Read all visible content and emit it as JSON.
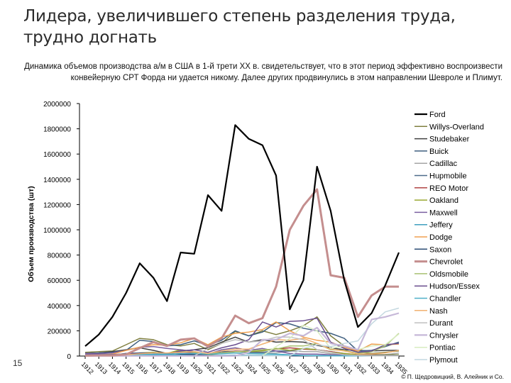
{
  "slide": {
    "title": "Лидера, увеличившего степень разделения труда, трудно догнать",
    "subtitle": "Динамика объемов производства а/м в США в 1-й трети XX в. свидетельствует, что в этот период эффективно воспроизвести конвейерную СРТ Форда ни удается никому. Далее других продвинулись в этом направлении Шевроле и Плимут.",
    "slide_number": "15",
    "copyright": "© П. Щедровицкий, В. Алейник и Со."
  },
  "chart_data": {
    "type": "line",
    "title": "",
    "xlabel": "",
    "ylabel": "Объем производства (шт)",
    "ylim": [
      0,
      2000000
    ],
    "yticks": [
      0,
      200000,
      400000,
      600000,
      800000,
      1000000,
      1200000,
      1400000,
      1600000,
      1800000,
      2000000
    ],
    "ytick_labels": [
      "0",
      "200000",
      "400000",
      "600000",
      "800000",
      "1000000",
      "1200000",
      "1400000",
      "1600000",
      "1800000",
      "2000000"
    ],
    "categories": [
      "1912",
      "1913",
      "1914",
      "1915",
      "1916",
      "1917",
      "1918",
      "1919",
      "1920",
      "1921",
      "1922",
      "1923",
      "1924",
      "1925",
      "1926",
      "1927",
      "1928",
      "1929",
      "1930",
      "1931",
      "1932",
      "1933",
      "1934",
      "1935"
    ],
    "legend_position": "right",
    "series": [
      {
        "name": "Ford",
        "color": "#000000",
        "width": 2.2,
        "values": [
          78000,
          170000,
          310000,
          500000,
          735000,
          620000,
          435000,
          820000,
          810000,
          1275000,
          1150000,
          1830000,
          1720000,
          1670000,
          1430000,
          370000,
          600000,
          1500000,
          1150000,
          600000,
          230000,
          340000,
          560000,
          820000
        ]
      },
      {
        "name": "Willys-Overland",
        "color": "#7f7f40",
        "width": 1.5,
        "values": [
          30000,
          35000,
          40000,
          90000,
          140000,
          130000,
          90000,
          80000,
          100000,
          50000,
          100000,
          195000,
          160000,
          200000,
          170000,
          200000,
          240000,
          310000,
          160000,
          80000,
          30000,
          20000,
          30000,
          40000
        ]
      },
      {
        "name": "Studebaker",
        "color": "#404040",
        "width": 1.5,
        "values": [
          22000,
          25000,
          35000,
          50000,
          65000,
          45000,
          20000,
          40000,
          50000,
          65000,
          110000,
          150000,
          110000,
          130000,
          110000,
          115000,
          110000,
          85000,
          65000,
          50000,
          45000,
          40000,
          45000,
          45000
        ]
      },
      {
        "name": "Buick",
        "color": "#3f5f7f",
        "width": 1.5,
        "values": [
          20000,
          25000,
          30000,
          45000,
          125000,
          115000,
          80000,
          90000,
          120000,
          85000,
          125000,
          200000,
          160000,
          190000,
          265000,
          255000,
          220000,
          200000,
          180000,
          140000,
          40000,
          45000,
          75000,
          110000
        ]
      },
      {
        "name": "Cadillac",
        "color": "#a5a5a5",
        "width": 1.5,
        "values": [
          12000,
          15000,
          8000,
          20000,
          18000,
          18000,
          15000,
          20000,
          20000,
          11000,
          25000,
          23000,
          20000,
          23000,
          25000,
          40000,
          35000,
          35000,
          18000,
          15000,
          10000,
          9000,
          12000,
          23000
        ]
      },
      {
        "name": "Hupmobile",
        "color": "#4d6b8a",
        "width": 1.5,
        "values": [
          8000,
          10000,
          12000,
          15000,
          20000,
          17000,
          15000,
          20000,
          25000,
          15000,
          34000,
          38000,
          30000,
          30000,
          40000,
          40000,
          60000,
          50000,
          35000,
          18000,
          10000,
          10000,
          9000,
          10000
        ]
      },
      {
        "name": "REO Motor",
        "color": "#b04545",
        "width": 1.5,
        "values": [
          8000,
          9000,
          10000,
          13000,
          20000,
          18000,
          15000,
          20000,
          25000,
          20000,
          25000,
          40000,
          40000,
          45000,
          55000,
          65000,
          55000,
          50000,
          35000,
          20000,
          10000,
          10000,
          8000,
          9000
        ]
      },
      {
        "name": "Oakland",
        "color": "#9aa832",
        "width": 1.5,
        "values": [
          6000,
          7000,
          8000,
          11000,
          25000,
          30000,
          20000,
          50000,
          35000,
          10000,
          20000,
          35000,
          35000,
          40000,
          60000,
          45000,
          60000,
          50000,
          30000,
          20000,
          10000,
          8000,
          9000,
          10000
        ]
      },
      {
        "name": "Maxwell",
        "color": "#7a5fa0",
        "width": 1.5,
        "values": [
          20000,
          18000,
          25000,
          45000,
          70000,
          75000,
          60000,
          50000,
          35000,
          15000,
          50000,
          65000,
          45000,
          60000,
          40000,
          20000,
          15000,
          15000,
          10000,
          8000,
          6000,
          5000,
          5000,
          5000
        ]
      },
      {
        "name": "Jeffery",
        "color": "#3f9fbf",
        "width": 1.5,
        "values": [
          3000,
          4000,
          5000,
          8000,
          11000,
          10000,
          9000,
          8000,
          7000,
          5000,
          5000,
          6000,
          5000,
          5000,
          5000,
          4000,
          4000,
          4000,
          3000,
          3000,
          2000,
          2000,
          2000,
          2000
        ]
      },
      {
        "name": "Dodge",
        "color": "#f0a050",
        "width": 1.5,
        "values": [
          5000,
          8000,
          15000,
          45000,
          70000,
          90000,
          85000,
          105000,
          140000,
          90000,
          150000,
          180000,
          190000,
          210000,
          270000,
          200000,
          150000,
          125000,
          110000,
          70000,
          40000,
          95000,
          90000,
          95000
        ]
      },
      {
        "name": "Saxon",
        "color": "#2c4d75",
        "width": 1.5,
        "values": [
          3000,
          5000,
          8000,
          20000,
          25000,
          25000,
          20000,
          15000,
          12000,
          5000,
          3000,
          2000,
          2000,
          2000,
          1000,
          1000,
          1000,
          1000,
          1000,
          1000,
          1000,
          1000,
          1000,
          1000
        ]
      },
      {
        "name": "Chevrolet",
        "color": "#c48e8e",
        "width": 3,
        "values": [
          3000,
          5000,
          5000,
          13000,
          63000,
          110000,
          80000,
          130000,
          140000,
          75000,
          140000,
          320000,
          260000,
          300000,
          550000,
          1000000,
          1190000,
          1320000,
          640000,
          620000,
          310000,
          480000,
          550000,
          550000
        ]
      },
      {
        "name": "Oldsmobile",
        "color": "#a8c070",
        "width": 1.5,
        "values": [
          10000,
          10000,
          12000,
          15000,
          20000,
          22000,
          18000,
          38000,
          30000,
          20000,
          25000,
          35000,
          40000,
          50000,
          55000,
          80000,
          80000,
          100000,
          50000,
          45000,
          20000,
          35000,
          80000,
          180000
        ]
      },
      {
        "name": "Hudson/Essex",
        "color": "#6b4f8f",
        "width": 1.5,
        "values": [
          10000,
          10000,
          12000,
          15000,
          20000,
          25000,
          18000,
          40000,
          50000,
          30000,
          65000,
          90000,
          130000,
          270000,
          230000,
          275000,
          280000,
          300000,
          110000,
          60000,
          30000,
          40000,
          90000,
          100000
        ]
      },
      {
        "name": "Chandler",
        "color": "#4fb0c8",
        "width": 1.5,
        "values": [
          3000,
          4000,
          5000,
          8000,
          12000,
          15000,
          15000,
          20000,
          20000,
          15000,
          18000,
          25000,
          20000,
          18000,
          15000,
          10000,
          5000,
          3000,
          1000,
          1000,
          1000,
          1000,
          1000,
          1000
        ]
      },
      {
        "name": "Nash",
        "color": "#f0b070",
        "width": 1.5,
        "values": [
          3000,
          4000,
          5000,
          10000,
          18000,
          25000,
          25000,
          30000,
          35000,
          20000,
          40000,
          55000,
          55000,
          95000,
          130000,
          125000,
          140000,
          100000,
          55000,
          40000,
          17000,
          15000,
          25000,
          45000
        ]
      },
      {
        "name": "Durant",
        "color": "#c0c0c0",
        "width": 1.5,
        "values": [
          1000,
          1000,
          1000,
          1000,
          1000,
          1000,
          1000,
          1000,
          1000,
          60000,
          100000,
          130000,
          110000,
          120000,
          150000,
          150000,
          130000,
          50000,
          30000,
          10000,
          5000,
          1000,
          1000,
          1000
        ]
      },
      {
        "name": "Chrysler",
        "color": "#c6b8d8",
        "width": 2.2,
        "values": [
          1000,
          1000,
          1000,
          1000,
          1000,
          1000,
          1000,
          1000,
          1000,
          1000,
          1000,
          1000,
          30000,
          130000,
          130000,
          180000,
          160000,
          225000,
          100000,
          80000,
          50000,
          290000,
          310000,
          340000
        ]
      },
      {
        "name": "Pontiac",
        "color": "#d8ecc0",
        "width": 1.5,
        "values": [
          1000,
          1000,
          1000,
          1000,
          1000,
          1000,
          1000,
          1000,
          1000,
          1000,
          1000,
          1000,
          1000,
          1000,
          75000,
          140000,
          245000,
          200000,
          60000,
          80000,
          50000,
          80000,
          90000,
          175000
        ]
      },
      {
        "name": "Plymout",
        "color": "#c4d8e0",
        "width": 1.5,
        "values": [
          1000,
          1000,
          1000,
          1000,
          1000,
          1000,
          1000,
          1000,
          1000,
          1000,
          1000,
          1000,
          1000,
          1000,
          1000,
          1000,
          60000,
          90000,
          75000,
          100000,
          120000,
          255000,
          350000,
          380000
        ]
      }
    ]
  }
}
